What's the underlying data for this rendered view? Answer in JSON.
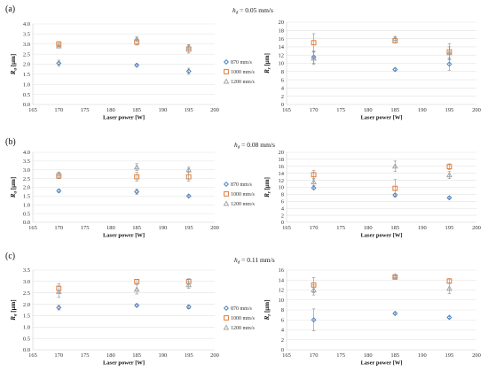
{
  "panels": [
    {
      "label": "(a)",
      "condition_symbol": "h",
      "condition_sub": "d",
      "condition_text": " = 0.05 mm/s"
    },
    {
      "label": "(b)",
      "condition_symbol": "h",
      "condition_sub": "d",
      "condition_text": " = 0.08 mm/s"
    },
    {
      "label": "(c)",
      "condition_symbol": "h",
      "condition_sub": "d",
      "condition_text": " = 0.11 mm/s"
    }
  ],
  "legend": [
    {
      "label": "870 mm/s",
      "marker": "diamond",
      "color": "#4a7fc1"
    },
    {
      "label": "1000 mm/s",
      "marker": "square",
      "color": "#e07b39"
    },
    {
      "label": "1200 mm/s",
      "marker": "triangle",
      "color": "#a5a5a5"
    }
  ],
  "chart_data": [
    {
      "type": "scatter",
      "panel": "(a)",
      "xlabel": "Laser power [W]",
      "ylabel": "Ra",
      "ylabel_unit": " [μm]",
      "xlim": [
        165,
        200
      ],
      "xticks": [
        165,
        170,
        175,
        180,
        185,
        190,
        195,
        200
      ],
      "ylim": [
        0,
        4
      ],
      "yticks": [
        0,
        0.5,
        1,
        1.5,
        2,
        2.5,
        3,
        3.5,
        4
      ],
      "ytick_decimals": 1,
      "x": [
        170,
        185,
        195
      ],
      "series": [
        {
          "name": "870 mm/s",
          "values": [
            2.05,
            1.95,
            1.65
          ],
          "errors": [
            0.15,
            0.05,
            0.15
          ]
        },
        {
          "name": "1000 mm/s",
          "values": [
            3.0,
            3.1,
            2.75
          ],
          "errors": [
            0.12,
            0.15,
            0.2
          ]
        },
        {
          "name": "1200 mm/s",
          "values": [
            2.9,
            3.25,
            2.85
          ],
          "errors": [
            0.1,
            0.1,
            0.12
          ]
        }
      ]
    },
    {
      "type": "scatter",
      "panel": "(a)",
      "xlabel": "Laser power [W]",
      "ylabel": "Rz",
      "ylabel_unit": " [μm]",
      "xlim": [
        165,
        200
      ],
      "xticks": [
        165,
        170,
        175,
        180,
        185,
        190,
        195,
        200
      ],
      "ylim": [
        0,
        20
      ],
      "yticks": [
        0,
        2,
        4,
        6,
        8,
        10,
        12,
        14,
        16,
        18,
        20
      ],
      "ytick_decimals": 0,
      "x": [
        170,
        185,
        195
      ],
      "series": [
        {
          "name": "870 mm/s",
          "values": [
            11.5,
            8.5,
            9.8
          ],
          "errors": [
            1.5,
            0.3,
            1.5
          ]
        },
        {
          "name": "1000 mm/s",
          "values": [
            15.0,
            15.5,
            12.8
          ],
          "errors": [
            2.2,
            0.6,
            2.0
          ]
        },
        {
          "name": "1200 mm/s",
          "values": [
            11.2,
            16.0,
            12.5
          ],
          "errors": [
            1.5,
            0.5,
            1.5
          ]
        }
      ]
    },
    {
      "type": "scatter",
      "panel": "(b)",
      "xlabel": "Laser power [W]",
      "ylabel": "Ra",
      "ylabel_unit": " [μm]",
      "xlim": [
        165,
        200
      ],
      "xticks": [
        165,
        170,
        175,
        180,
        185,
        190,
        195,
        200
      ],
      "ylim": [
        0,
        4
      ],
      "yticks": [
        0,
        0.5,
        1,
        1.5,
        2,
        2.5,
        3,
        3.5,
        4
      ],
      "ytick_decimals": 1,
      "x": [
        170,
        185,
        195
      ],
      "series": [
        {
          "name": "870 mm/s",
          "values": [
            1.8,
            1.75,
            1.5
          ],
          "errors": [
            0.08,
            0.15,
            0.05
          ]
        },
        {
          "name": "1000 mm/s",
          "values": [
            2.65,
            2.6,
            2.6
          ],
          "errors": [
            0.15,
            0.25,
            0.25
          ]
        },
        {
          "name": "1200 mm/s",
          "values": [
            2.75,
            3.15,
            3.0
          ],
          "errors": [
            0.1,
            0.2,
            0.15
          ]
        }
      ]
    },
    {
      "type": "scatter",
      "panel": "(b)",
      "xlabel": "Laser power [W]",
      "ylabel": "Rz",
      "ylabel_unit": " [μm]",
      "xlim": [
        165,
        200
      ],
      "xticks": [
        165,
        170,
        175,
        180,
        185,
        190,
        195,
        200
      ],
      "ylim": [
        0,
        20
      ],
      "yticks": [
        0,
        2,
        4,
        6,
        8,
        10,
        12,
        14,
        16,
        18,
        20
      ],
      "ytick_decimals": 0,
      "x": [
        170,
        185,
        195
      ],
      "series": [
        {
          "name": "870 mm/s",
          "values": [
            9.8,
            7.8,
            7.0
          ],
          "errors": [
            0.3,
            0.3,
            0.2
          ]
        },
        {
          "name": "1000 mm/s",
          "values": [
            13.6,
            9.7,
            15.9
          ],
          "errors": [
            1.2,
            2.5,
            0.8
          ]
        },
        {
          "name": "1200 mm/s",
          "values": [
            11.5,
            16.0,
            13.5
          ],
          "errors": [
            1.0,
            1.5,
            1.0
          ]
        }
      ]
    },
    {
      "type": "scatter",
      "panel": "(c)",
      "xlabel": "Laser power [W]",
      "ylabel": "Ra",
      "ylabel_unit": " [μm]",
      "xlim": [
        165,
        200
      ],
      "xticks": [
        165,
        170,
        175,
        180,
        185,
        190,
        195,
        200
      ],
      "ylim": [
        0,
        3.5
      ],
      "yticks": [
        0,
        0.5,
        1,
        1.5,
        2,
        2.5,
        3,
        3.5
      ],
      "ytick_decimals": 1,
      "x": [
        170,
        185,
        195
      ],
      "series": [
        {
          "name": "870 mm/s",
          "values": [
            1.85,
            1.95,
            1.88
          ],
          "errors": [
            0.1,
            0.05,
            0.08
          ]
        },
        {
          "name": "1000 mm/s",
          "values": [
            2.7,
            3.0,
            3.0
          ],
          "errors": [
            0.2,
            0.1,
            0.12
          ]
        },
        {
          "name": "1200 mm/s",
          "values": [
            2.55,
            2.65,
            2.85
          ],
          "errors": [
            0.25,
            0.2,
            0.15
          ]
        }
      ]
    },
    {
      "type": "scatter",
      "panel": "(c)",
      "xlabel": "Laser power [W]",
      "ylabel": "Rz",
      "ylabel_unit": " [μm]",
      "xlim": [
        165,
        200
      ],
      "xticks": [
        165,
        170,
        175,
        180,
        185,
        190,
        195,
        200
      ],
      "ylim": [
        0,
        16
      ],
      "yticks": [
        0,
        2,
        4,
        6,
        8,
        10,
        12,
        14,
        16
      ],
      "ytick_decimals": 0,
      "x": [
        170,
        185,
        195
      ],
      "series": [
        {
          "name": "870 mm/s",
          "values": [
            6.0,
            7.3,
            6.5
          ],
          "errors": [
            2.2,
            0.2,
            0.2
          ]
        },
        {
          "name": "1000 mm/s",
          "values": [
            13.0,
            14.6,
            13.8
          ],
          "errors": [
            1.5,
            0.3,
            0.5
          ]
        },
        {
          "name": "1200 mm/s",
          "values": [
            12.0,
            14.8,
            12.3
          ],
          "errors": [
            1.0,
            0.3,
            1.0
          ]
        }
      ]
    }
  ]
}
